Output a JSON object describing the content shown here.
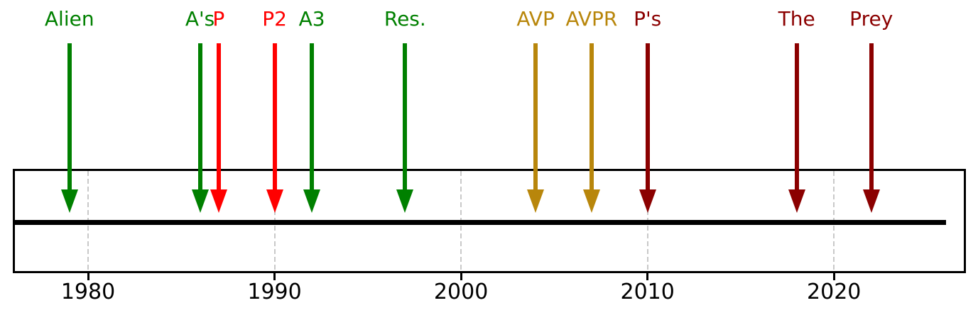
{
  "chart_data": {
    "type": "timeline",
    "title": "",
    "xlabel": "",
    "ylabel": "",
    "x_axis": {
      "min": 1976,
      "max": 2027,
      "tick_values": [
        1980,
        1990,
        2000,
        2010,
        2020
      ],
      "tick_labels": [
        "1980",
        "1990",
        "2000",
        "2010",
        "2020"
      ],
      "gridlines": true,
      "gridline_style": "dashed"
    },
    "baseline": {
      "from": 1976,
      "to": 2026,
      "color": "#000000"
    },
    "events": [
      {
        "label": "Alien",
        "year": 1979,
        "color": "#008000"
      },
      {
        "label": "A's",
        "year": 1986,
        "color": "#008000"
      },
      {
        "label": "P",
        "year": 1987,
        "color": "#ff0000"
      },
      {
        "label": "P2",
        "year": 1990,
        "color": "#ff0000"
      },
      {
        "label": "A3",
        "year": 1992,
        "color": "#008000"
      },
      {
        "label": "Res.",
        "year": 1997,
        "color": "#008000"
      },
      {
        "label": "AVP",
        "year": 2004,
        "color": "#b8860b"
      },
      {
        "label": "AVPR",
        "year": 2007,
        "color": "#b8860b"
      },
      {
        "label": "P's",
        "year": 2010,
        "color": "#8b0000"
      },
      {
        "label": "The",
        "year": 2018,
        "color": "#8b0000"
      },
      {
        "label": "Prey",
        "year": 2022,
        "color": "#8b0000"
      }
    ],
    "colors": {
      "grid": "#c9c9c9",
      "axis": "#000000",
      "tick_label": "#000000",
      "background": "#ffffff"
    },
    "legend": null,
    "marker_style": "downward-arrow"
  }
}
